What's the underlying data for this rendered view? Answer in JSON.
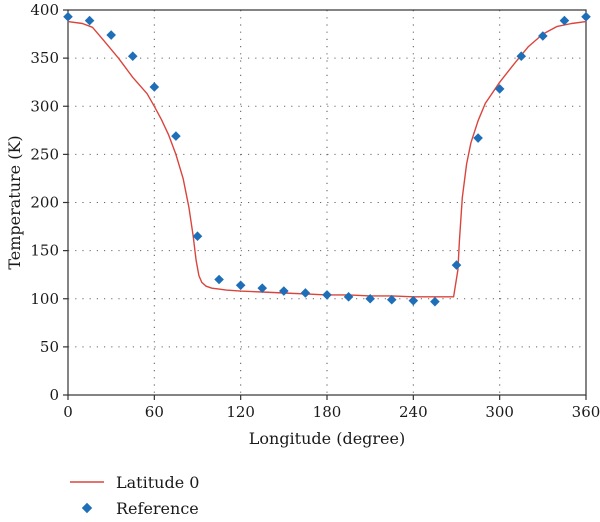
{
  "chart_data": {
    "type": "line",
    "title": "",
    "xlabel": "Longitude (degree)",
    "ylabel": "Temperature (K)",
    "xlim": [
      0,
      360
    ],
    "ylim": [
      0,
      400
    ],
    "xticks": [
      0,
      60,
      120,
      180,
      240,
      300,
      360
    ],
    "yticks": [
      0,
      50,
      100,
      150,
      200,
      250,
      300,
      350,
      400
    ],
    "grid": true,
    "legend_position": "bottom-left",
    "series": [
      {
        "name": "Latitude 0",
        "kind": "line",
        "color": "#d9453d",
        "x": [
          0,
          10,
          17,
          25,
          35,
          45,
          55,
          60,
          65,
          70,
          75,
          80,
          84,
          87,
          89,
          91,
          93,
          96,
          100,
          105,
          110,
          120,
          135,
          150,
          165,
          180,
          195,
          210,
          225,
          240,
          255,
          268,
          271,
          272,
          274,
          277,
          280,
          285,
          290,
          300,
          310,
          320,
          330,
          340,
          350,
          360
        ],
        "y": [
          388,
          386,
          382,
          368,
          350,
          330,
          313,
          300,
          286,
          270,
          250,
          225,
          195,
          165,
          140,
          124,
          117,
          113,
          111,
          110,
          109,
          108,
          107,
          106,
          105,
          104,
          104,
          103,
          103,
          102,
          102,
          102,
          130,
          160,
          205,
          240,
          262,
          285,
          303,
          325,
          344,
          362,
          375,
          383,
          386,
          388
        ]
      },
      {
        "name": "Reference",
        "kind": "scatter",
        "marker": "diamond",
        "color": "#1f6fb8",
        "x": [
          0,
          15,
          30,
          45,
          60,
          75,
          90,
          105,
          120,
          135,
          150,
          165,
          180,
          195,
          210,
          225,
          240,
          255,
          270,
          285,
          300,
          315,
          330,
          345,
          360
        ],
        "y": [
          393,
          389,
          374,
          352,
          320,
          269,
          165,
          120,
          114,
          111,
          108,
          106,
          104,
          102,
          100,
          99,
          98,
          97,
          135,
          267,
          318,
          352,
          373,
          389,
          393
        ]
      }
    ]
  }
}
